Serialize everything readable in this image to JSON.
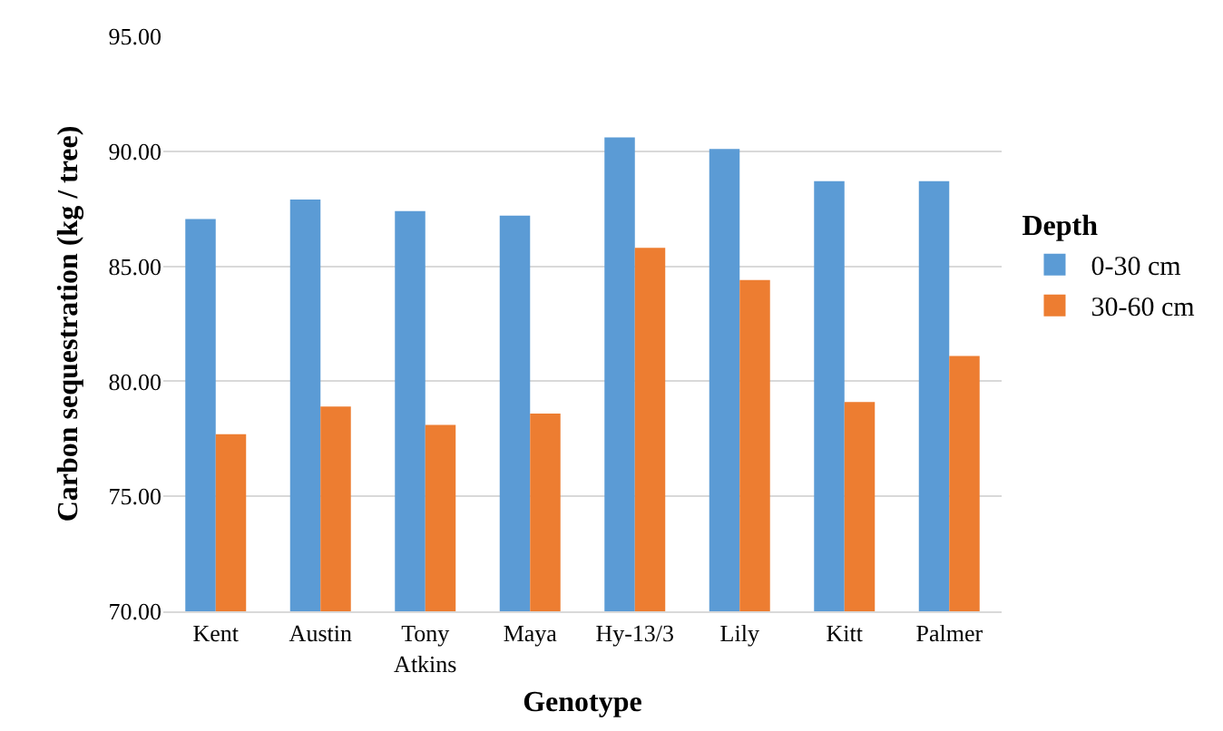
{
  "chart_data": {
    "type": "bar",
    "xlabel": "Genotype",
    "ylabel": "Carbon sequestration (kg / tree)",
    "legend_title": "Depth",
    "categories": [
      "Kent",
      "Austin",
      "Tony Atkins",
      "Maya",
      "Hy-13/3",
      "Lily",
      "Kitt",
      "Palmer"
    ],
    "series": [
      {
        "name": "0-30 cm",
        "color": "#5b9bd5",
        "values": [
          87.05,
          87.9,
          87.4,
          87.2,
          90.6,
          90.1,
          88.7,
          88.7
        ]
      },
      {
        "name": "30-60 cm",
        "color": "#ed7d31",
        "values": [
          77.7,
          78.9,
          78.1,
          78.6,
          85.8,
          84.4,
          79.1,
          81.1
        ]
      }
    ],
    "ylim": [
      70,
      95
    ],
    "yticks": [
      {
        "value": 70,
        "label": "70.00"
      },
      {
        "value": 75,
        "label": "75.00"
      },
      {
        "value": 80,
        "label": "80.00"
      },
      {
        "value": 85,
        "label": "85.00"
      },
      {
        "value": 90,
        "label": "90.00"
      },
      {
        "value": 95,
        "label": "95.00"
      }
    ],
    "grid": "y",
    "legend": "right"
  }
}
